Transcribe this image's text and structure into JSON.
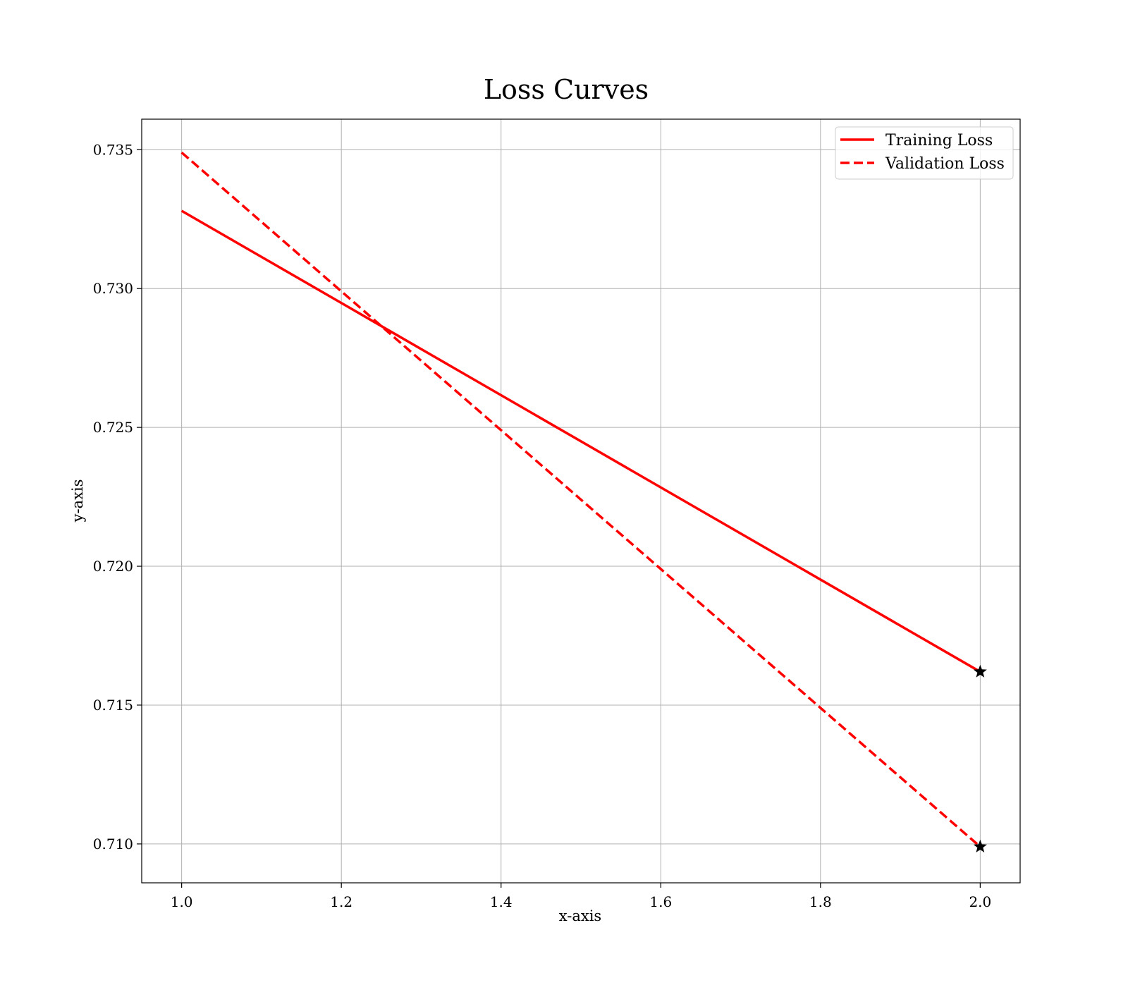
{
  "chart_data": {
    "type": "line",
    "title": "Loss Curves",
    "xlabel": "x-axis",
    "ylabel": "y-axis",
    "xlim": [
      0.95,
      2.05
    ],
    "ylim": [
      0.7086,
      0.7361
    ],
    "x_ticks": [
      1.0,
      1.2,
      1.4,
      1.6,
      1.8,
      2.0
    ],
    "x_tick_labels": [
      "1.0",
      "1.2",
      "1.4",
      "1.6",
      "1.8",
      "2.0"
    ],
    "y_ticks": [
      0.71,
      0.715,
      0.72,
      0.725,
      0.73,
      0.735
    ],
    "y_tick_labels": [
      "0.710",
      "0.715",
      "0.720",
      "0.725",
      "0.730",
      "0.735"
    ],
    "grid": true,
    "legend_position": "top-right",
    "series": [
      {
        "name": "Training Loss",
        "x": [
          1,
          2
        ],
        "values": [
          0.7328,
          0.7162
        ],
        "color": "#ff0000",
        "style": "solid",
        "end_marker": "star"
      },
      {
        "name": "Validation Loss",
        "x": [
          1,
          2
        ],
        "values": [
          0.7349,
          0.7099
        ],
        "color": "#ff0000",
        "style": "dashed",
        "end_marker": "star"
      }
    ],
    "marker_color": "#000000"
  }
}
